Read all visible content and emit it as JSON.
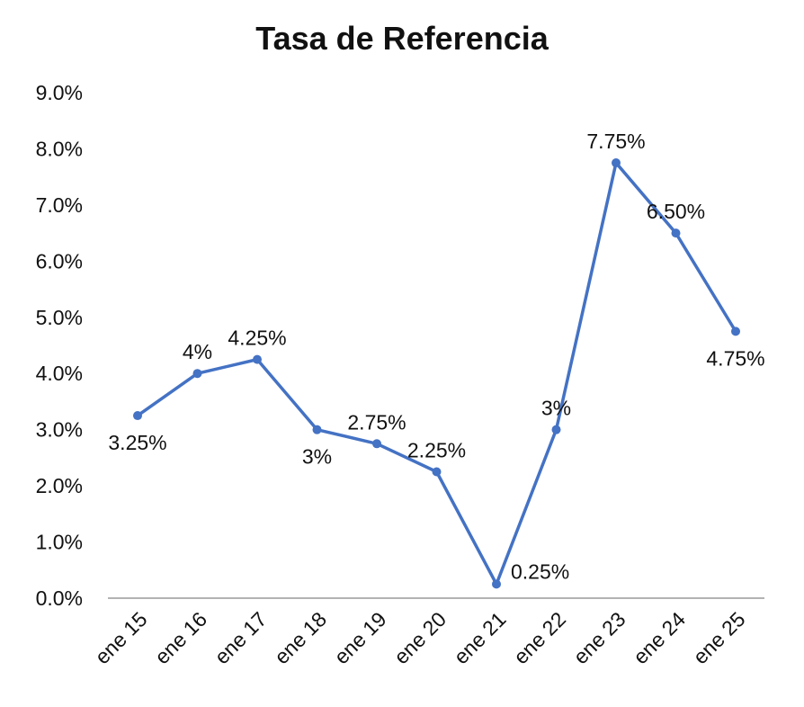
{
  "chart_data": {
    "type": "line",
    "title": "Tasa de Referencia",
    "xlabel": "",
    "ylabel": "",
    "categories": [
      "ene 15",
      "ene 16",
      "ene 17",
      "ene 18",
      "ene 19",
      "ene 20",
      "ene 21",
      "ene 22",
      "ene 23",
      "ene 24",
      "ene 25"
    ],
    "series": [
      {
        "values": [
          3.25,
          4.0,
          4.25,
          3.0,
          2.75,
          2.25,
          0.25,
          3.0,
          7.75,
          6.5,
          4.75
        ],
        "data_labels": [
          "3.25%",
          "4%",
          "4.25%",
          "3%",
          "2.75%",
          "2.25%",
          "0.25%",
          "3%",
          "7.75%",
          "6.50%",
          "4.75%"
        ]
      }
    ],
    "ylim": [
      0,
      9
    ],
    "yticks": [
      0,
      1,
      2,
      3,
      4,
      5,
      6,
      7,
      8,
      9
    ],
    "ytick_labels": [
      "0.0%",
      "1.0%",
      "2.0%",
      "3.0%",
      "4.0%",
      "5.0%",
      "6.0%",
      "7.0%",
      "8.0%",
      "9.0%"
    ],
    "grid": false,
    "legend": "none",
    "colors": {
      "line": "#4472C4",
      "axis": "#9a9a9a",
      "text": "#111111"
    }
  }
}
